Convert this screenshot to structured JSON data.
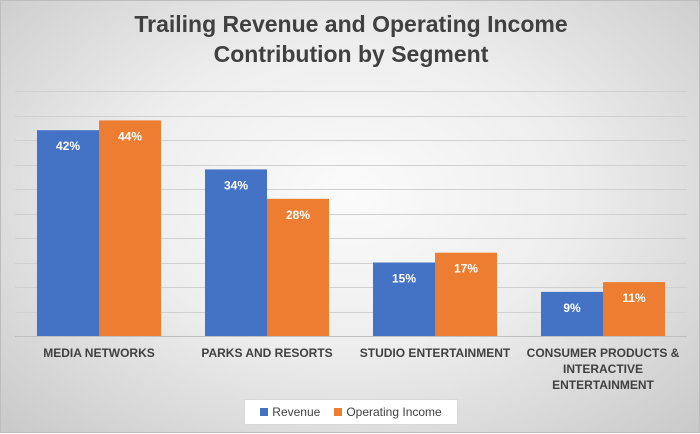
{
  "chart_data": {
    "type": "bar",
    "title_lines": [
      "Trailing Revenue and Operating Income",
      "Contribution by Segment"
    ],
    "categories": [
      [
        "MEDIA NETWORKS"
      ],
      [
        "PARKS AND RESORTS"
      ],
      [
        "STUDIO ENTERTAINMENT"
      ],
      [
        "CONSUMER PRODUCTS &",
        "INTERACTIVE",
        "ENTERTAINMENT"
      ]
    ],
    "series": [
      {
        "name": "Revenue",
        "color": "#4472c4",
        "values": [
          42,
          34,
          15,
          9
        ],
        "labels": [
          "42%",
          "34%",
          "15%",
          "9%"
        ]
      },
      {
        "name": "Operating Income",
        "color": "#ed7d31",
        "values": [
          44,
          28,
          17,
          11
        ],
        "labels": [
          "44%",
          "28%",
          "17%",
          "11%"
        ]
      }
    ],
    "ylim": [
      0,
      50
    ],
    "y_gridline_step": 5,
    "grid": true,
    "y_tick_labels_shown": false,
    "legend_position": "bottom"
  }
}
